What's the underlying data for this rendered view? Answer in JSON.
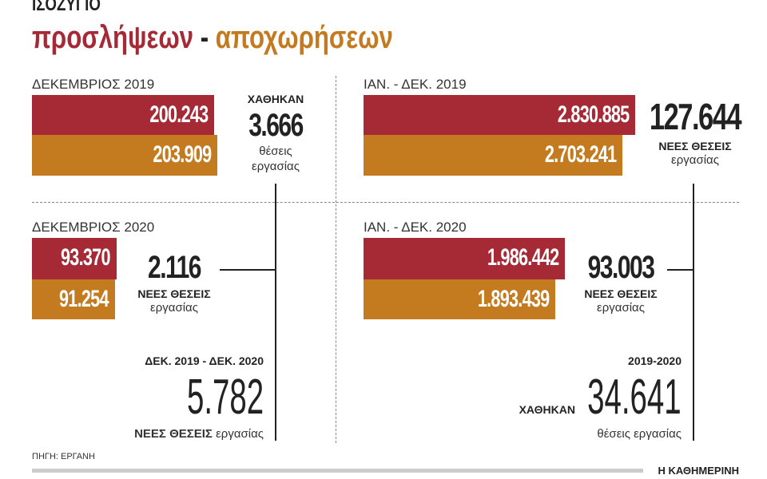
{
  "header": {
    "title": "ΙΣΟΖΥΓΙΟ",
    "subtitle_red": "προσλήψεων",
    "subtitle_sep": "-",
    "subtitle_orange": "αποχωρήσεων"
  },
  "colors": {
    "hires": "#a62a36",
    "departures": "#c47a1e"
  },
  "chart_data": [
    {
      "type": "bar",
      "title": "ΔΕΚΕΜΒΡΙΟΣ 2019",
      "categories": [
        "προσλήψεων",
        "αποχωρήσεων"
      ],
      "values": [
        200243,
        203909
      ],
      "labels": [
        "200.243",
        "203.909"
      ],
      "balance": {
        "prefix": "ΧΑΘΗΚΑΝ",
        "value": "3.666",
        "line1": "θέσεις",
        "line2": "εργασίας"
      }
    },
    {
      "type": "bar",
      "title": "ΙΑΝ. - ΔΕΚ. 2019",
      "categories": [
        "προσλήψεων",
        "αποχωρήσεων"
      ],
      "values": [
        2830885,
        2703241
      ],
      "labels": [
        "2.830.885",
        "2.703.241"
      ],
      "balance": {
        "value": "127.644",
        "line1": "ΝΕΕΣ ΘΕΣΕΙΣ",
        "line2": "εργασίας"
      }
    },
    {
      "type": "bar",
      "title": "ΔΕΚΕΜΒΡΙΟΣ 2020",
      "categories": [
        "προσλήψεων",
        "αποχωρήσεων"
      ],
      "values": [
        93370,
        91254
      ],
      "labels": [
        "93.370",
        "91.254"
      ],
      "balance": {
        "value": "2.116",
        "line1": "ΝΕΕΣ ΘΕΣΕΙΣ",
        "line2": "εργασίας"
      }
    },
    {
      "type": "bar",
      "title": "ΙΑΝ. - ΔΕΚ. 2020",
      "categories": [
        "προσλήψεων",
        "αποχωρήσεων"
      ],
      "values": [
        1986442,
        1893439
      ],
      "labels": [
        "1.986.442",
        "1.893.439"
      ],
      "balance": {
        "value": "93.003",
        "line1": "ΝΕΕΣ ΘΕΣΕΙΣ",
        "line2": "εργασίας"
      }
    }
  ],
  "comparison_left": {
    "period": "ΔΕΚ. 2019 - ΔΕΚ. 2020",
    "value": "5.782",
    "bold": "ΝΕΕΣ ΘΕΣΕΙΣ",
    "rest": "εργασίας"
  },
  "comparison_right": {
    "period": "2019-2020",
    "prefix": "ΧΑΘΗΚΑΝ",
    "value": "34.641",
    "caption": "θέσεις εργασίας"
  },
  "footer": {
    "source": "ΠΗΓΗ: ΕΡΓΑΝΗ",
    "brand": "Η ΚΑΘΗΜΕΡΙΝΗ"
  }
}
